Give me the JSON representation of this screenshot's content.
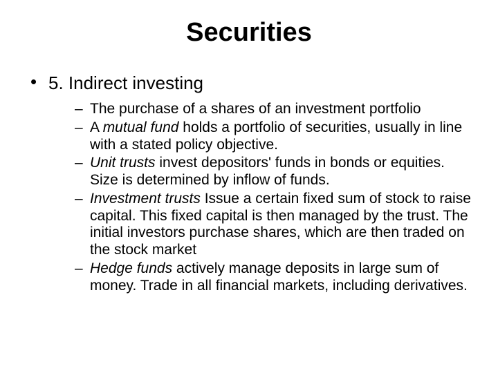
{
  "slide": {
    "title": "Securities",
    "main_item": "5. Indirect investing",
    "sub_items": {
      "s1": {
        "text": "The purchase of a shares of an investment portfolio"
      },
      "s2": {
        "prefix": "A ",
        "term": "mutual fund",
        "rest": " holds a portfolio of securities, usually in line with a stated policy objective."
      },
      "s3": {
        "term": "Unit trusts",
        "rest": " invest depositors' funds in bonds or equities.  Size is determined by inflow of funds."
      },
      "s4": {
        "term": "Investment trusts",
        "rest": "  Issue a certain fixed sum of stock to raise capital.  This fixed capital is then managed by the trust.  The initial investors purchase shares, which are then traded on the stock market"
      },
      "s5": {
        "term": "Hedge funds",
        "rest": " actively manage deposits in large sum of money. Trade in all financial markets, including derivatives."
      }
    },
    "colors": {
      "background": "#ffffff",
      "text": "#000000"
    },
    "typography": {
      "title_fontsize": 38,
      "level1_fontsize": 26,
      "level2_fontsize": 21,
      "font_family": "Arial"
    }
  }
}
